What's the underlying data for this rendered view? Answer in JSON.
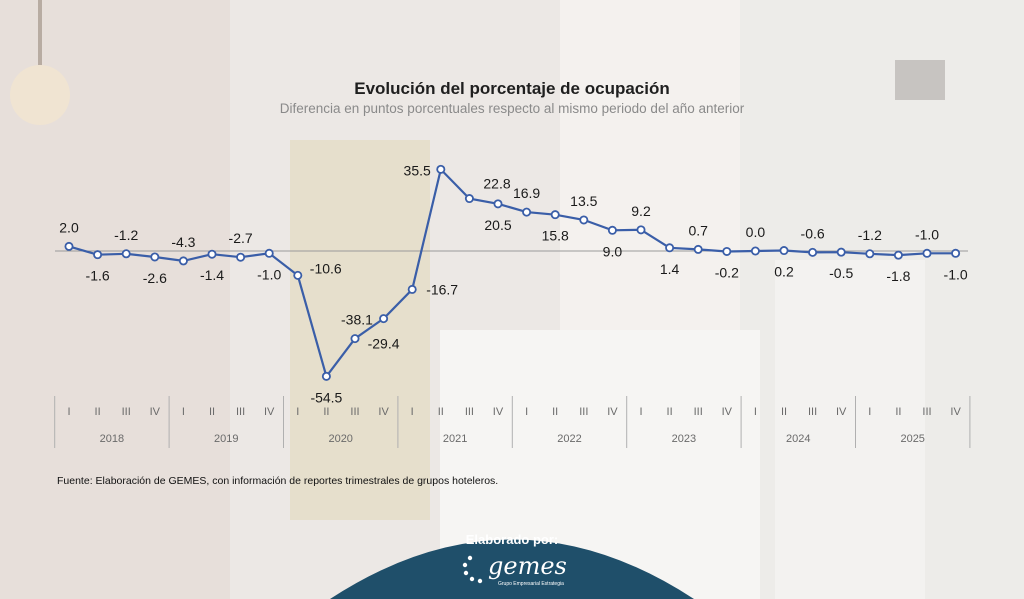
{
  "header": {
    "title": "Evolución del porcentaje de ocupación",
    "subtitle": "Diferencia en puntos porcentuales respecto al mismo periodo del año anterior"
  },
  "footer": {
    "source": "Fuente: Elaboración de GEMES, con información de reportes trimestrales de grupos hoteleros.",
    "credit_label": "Elaborado por:",
    "logo_text": "gemes",
    "logo_tagline": "Grupo Empresarial Estrategia"
  },
  "colors": {
    "line": "#3a5ea8",
    "credit_panel": "#1f4f6a",
    "zero_line": "#9a9a9a"
  },
  "chart_data": {
    "type": "line",
    "title": "Evolución del porcentaje de ocupación",
    "subtitle": "Diferencia en puntos porcentuales respecto al mismo periodo del año anterior",
    "quarters": [
      "I",
      "II",
      "III",
      "IV"
    ],
    "years": [
      "2018",
      "2019",
      "2020",
      "2021",
      "2022",
      "2023",
      "2024",
      "2025"
    ],
    "x": [
      "2018 I",
      "2018 II",
      "2018 III",
      "2018 IV",
      "2019 I",
      "2019 II",
      "2019 III",
      "2019 IV",
      "2020 I",
      "2020 II",
      "2020 III",
      "2020 IV",
      "2021 I",
      "2021 II",
      "2021 III",
      "2021 IV",
      "2022 I",
      "2022 II",
      "2022 III",
      "2022 IV",
      "2023 I",
      "2023 II",
      "2023 III",
      "2023 IV",
      "2024 I",
      "2024 II",
      "2024 III",
      "2024 IV",
      "2025 I",
      "2025 II",
      "2025 III",
      "2025 IV"
    ],
    "values": [
      2.0,
      -1.6,
      -1.2,
      -2.6,
      -4.3,
      -1.4,
      -2.7,
      -1.0,
      -10.6,
      -54.5,
      -38.1,
      -29.4,
      -16.7,
      35.5,
      22.8,
      20.5,
      16.9,
      15.8,
      13.5,
      9.0,
      9.2,
      1.4,
      0.7,
      -0.2,
      0.0,
      0.2,
      -0.6,
      -0.5,
      -1.2,
      -1.8,
      -1.0,
      -1.0
    ],
    "labels": [
      "2.0",
      "-1.6",
      "-1.2",
      "-2.6",
      "-4.3",
      "-1.4",
      "-2.7",
      "-1.0",
      "-10.6",
      "-54.5",
      "-38.1",
      "-29.4",
      "-16.7",
      "35.5",
      "22.8",
      "20.5",
      "16.9",
      "15.8",
      "13.5",
      "9.0",
      "9.2",
      "1.4",
      "0.7",
      "-0.2",
      "0.0",
      "0.2",
      "-0.6",
      "-0.5",
      "-1.2",
      "-1.8",
      "-1.0",
      "-1.0"
    ],
    "label_pos": [
      "above",
      "below",
      "above",
      "below",
      "above",
      "below",
      "above",
      "below",
      "right",
      "below",
      "above",
      "right",
      "right",
      "above",
      "right",
      "below",
      "above",
      "below",
      "above",
      "below",
      "above",
      "below",
      "above",
      "below",
      "above",
      "below",
      "above",
      "below",
      "above",
      "below",
      "above",
      "below"
    ],
    "grid": false,
    "legend": "none"
  }
}
